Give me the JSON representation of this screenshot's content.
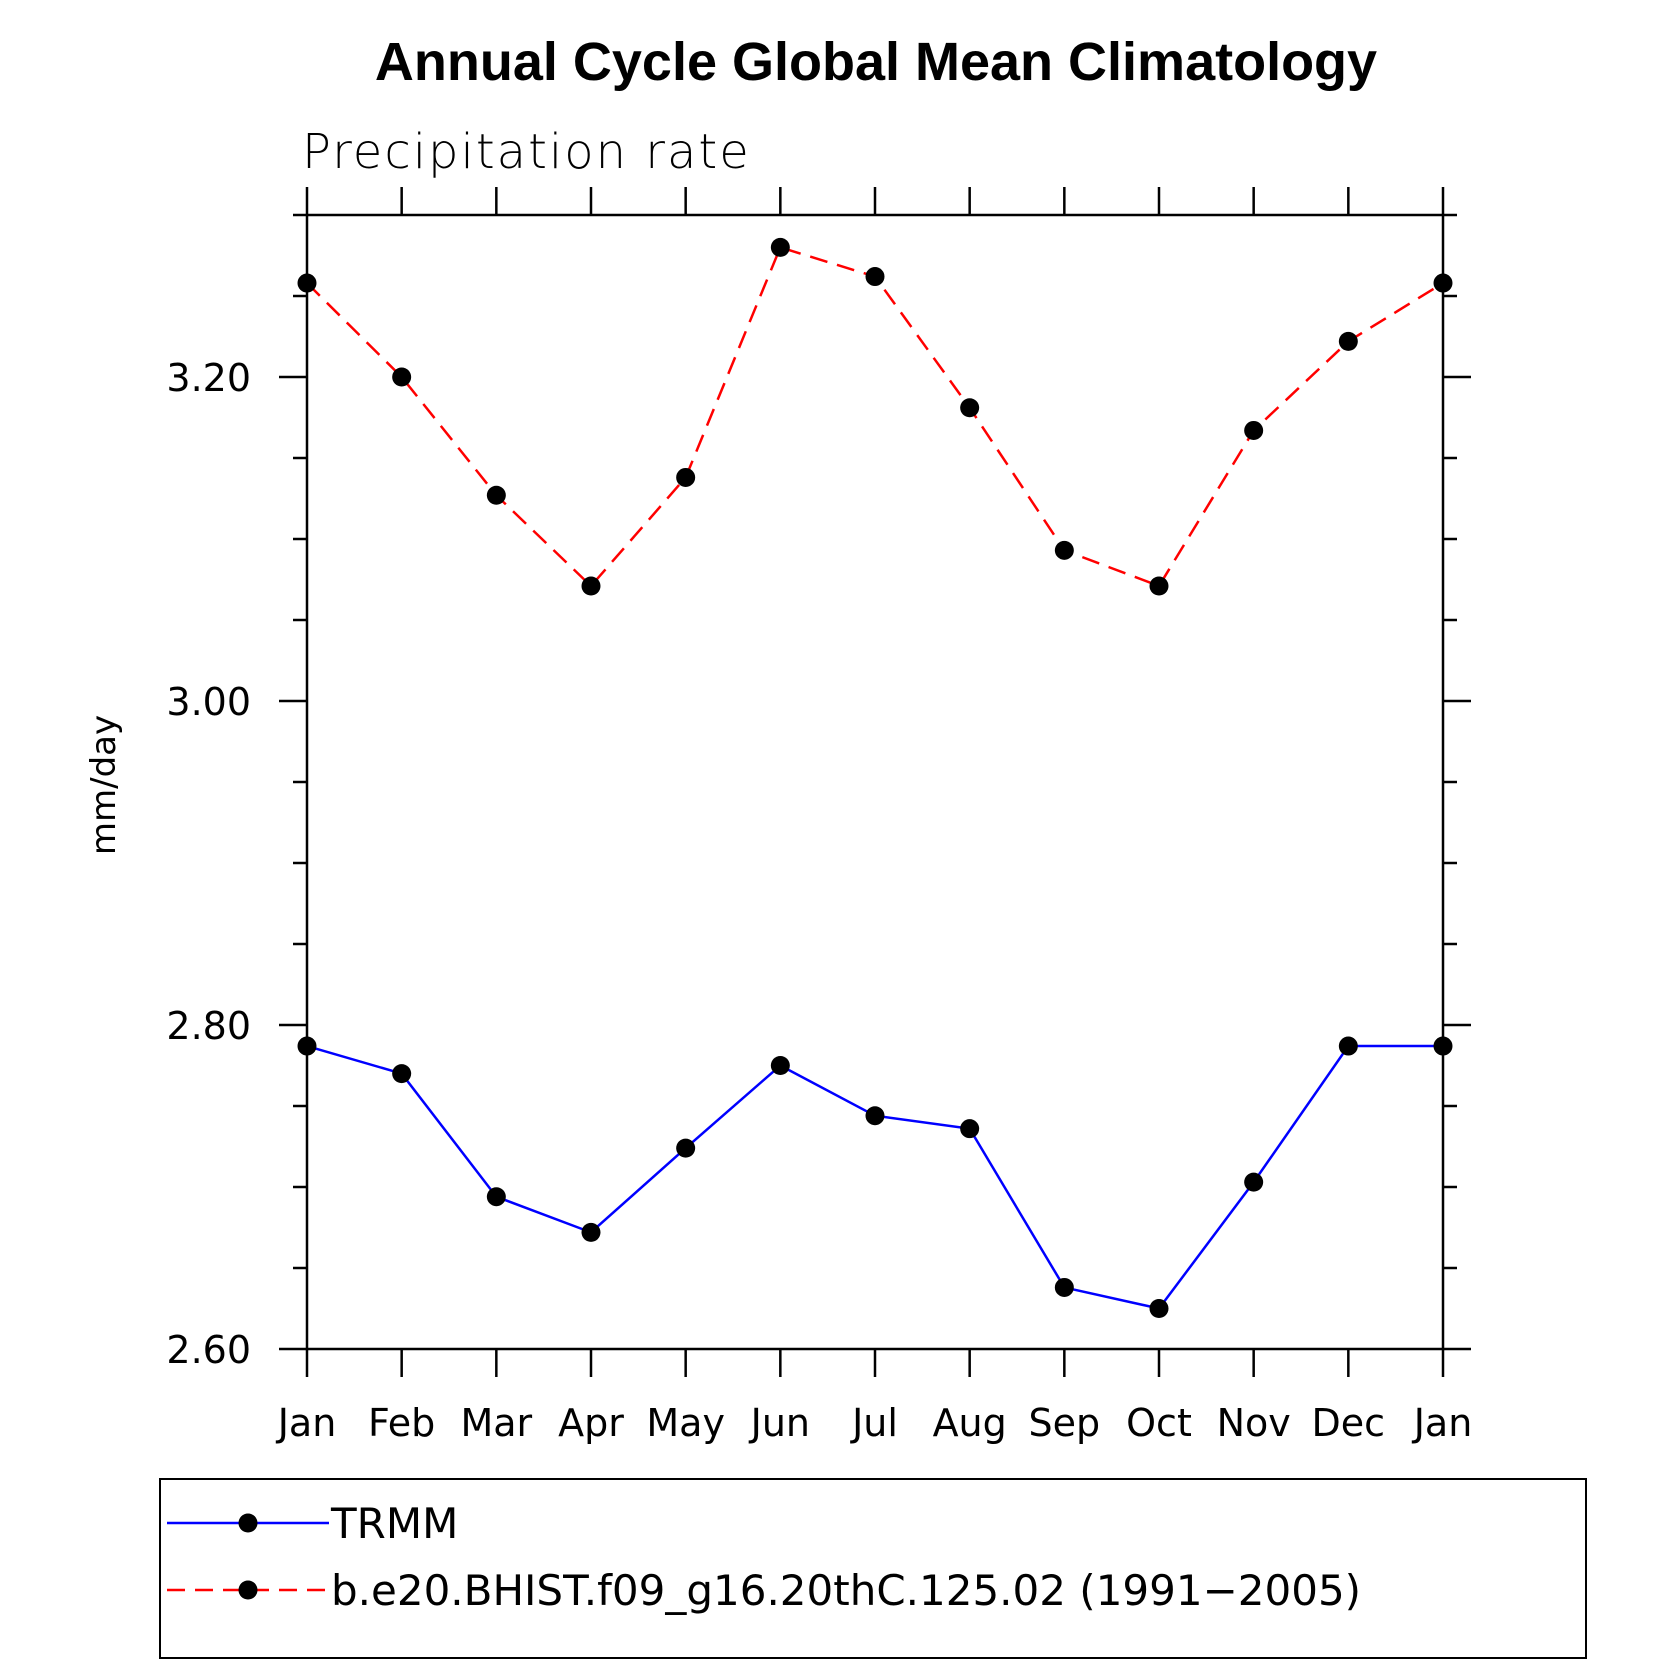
{
  "chart_data": {
    "type": "line",
    "title": "Annual Cycle Global Mean Climatology",
    "subtitle": "Precipitation rate",
    "ylabel": "mm/day",
    "xlabel": "",
    "categories": [
      "Jan",
      "Feb",
      "Mar",
      "Apr",
      "May",
      "Jun",
      "Jul",
      "Aug",
      "Sep",
      "Oct",
      "Nov",
      "Dec",
      "Jan"
    ],
    "ylim": [
      2.6,
      3.3
    ],
    "yticks": [
      "3.20",
      "3.00",
      "2.80",
      "2.60"
    ],
    "ytick_values": [
      3.2,
      3.0,
      2.8,
      2.6
    ],
    "yminor_step": 0.05,
    "grid": false,
    "legend_position": "bottom",
    "series": [
      {
        "name": "TRMM",
        "color": "#0000ff",
        "style": "solid",
        "marker": "dot",
        "values": [
          2.787,
          2.77,
          2.694,
          2.672,
          2.724,
          2.775,
          2.744,
          2.736,
          2.638,
          2.625,
          2.703,
          2.787,
          2.787
        ]
      },
      {
        "name": "b.e20.BHIST.f09_g16.20thC.125.02 (1991−2005)",
        "color": "#ff0000",
        "style": "dashed",
        "marker": "dot",
        "values": [
          3.258,
          3.2,
          3.127,
          3.071,
          3.138,
          3.28,
          3.262,
          3.181,
          3.093,
          3.071,
          3.167,
          3.222,
          3.258
        ]
      }
    ]
  }
}
